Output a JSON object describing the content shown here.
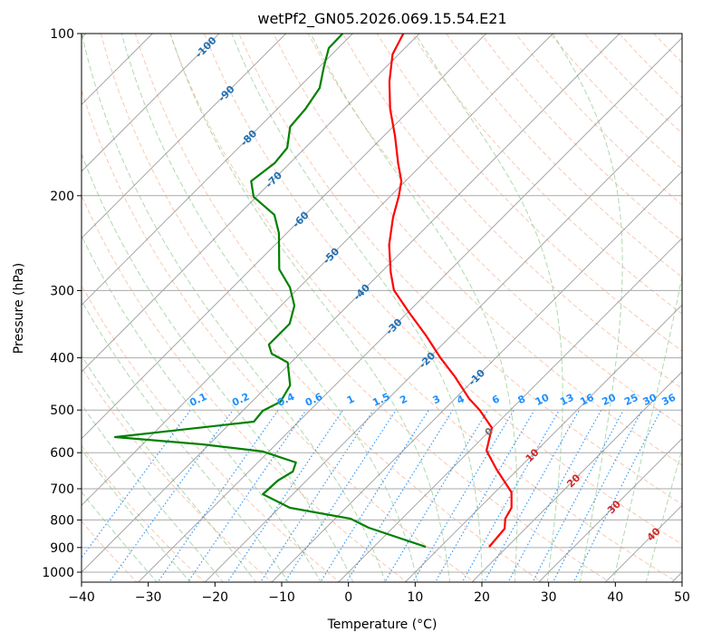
{
  "chart_data": {
    "type": "line",
    "title": "wetPf2_GN05.2026.069.15.54.E21",
    "xlabel": "Temperature (°C)",
    "ylabel": "Pressure (hPa)",
    "xlim": [
      -40,
      50
    ],
    "ylim": [
      1043,
      100
    ],
    "y_scale": "log",
    "grid": true,
    "x_ticks": [
      -40,
      -30,
      -20,
      -10,
      0,
      10,
      20,
      30,
      40,
      50
    ],
    "x_tick_labels": [
      "−40",
      "−30",
      "−20",
      "−10",
      "0",
      "10",
      "20",
      "30",
      "40",
      "50"
    ],
    "y_ticks": [
      100,
      200,
      300,
      400,
      500,
      600,
      700,
      800,
      900,
      1000
    ],
    "y_tick_labels": [
      "100",
      "200",
      "300",
      "400",
      "500",
      "600",
      "700",
      "800",
      "900",
      "1000"
    ],
    "isotherm_labels": [
      "-100",
      "-90",
      "-80",
      "-70",
      "-60",
      "-50",
      "-40",
      "-30",
      "-20",
      "-10",
      "0",
      "10",
      "20",
      "30",
      "40"
    ],
    "isotherm_values": [
      -100,
      -90,
      -80,
      -70,
      -60,
      -50,
      -40,
      -30,
      -20,
      -10,
      0,
      10,
      20,
      30,
      40
    ],
    "mixing_ratio_labels": [
      "0.1",
      "0.2",
      "0.4",
      "0.6",
      "1",
      "1.5",
      "2",
      "3",
      "4",
      "6",
      "8",
      "10",
      "13",
      "16",
      "20",
      "25",
      "30",
      "36"
    ],
    "mixing_ratio_values": [
      0.1,
      0.2,
      0.4,
      0.6,
      1,
      1.5,
      2,
      3,
      4,
      6,
      8,
      10,
      13,
      16,
      20,
      25,
      30,
      36
    ],
    "colors": {
      "temperature": "#ff0000",
      "dewpoint": "#008000",
      "isotherm": "#808080",
      "dry_adiabat": "#f4a582",
      "moist_adiabat": "#8fc98f",
      "mixing_ratio": "#1e90ff",
      "isotherm_label_cold": "#1f6fb4",
      "isotherm_label_zero": "#707070",
      "isotherm_label_warm": "#d62728"
    },
    "series": [
      {
        "name": "Temperature",
        "points_pressure_temp": [
          [
            100,
            -72.4
          ],
          [
            109.3,
            -70.9
          ],
          [
            122.8,
            -67.3
          ],
          [
            138,
            -63.1
          ],
          [
            155,
            -58.3
          ],
          [
            174,
            -53.8
          ],
          [
            188,
            -50.6
          ],
          [
            200,
            -48.8
          ],
          [
            219.6,
            -46.4
          ],
          [
            246.8,
            -42.9
          ],
          [
            277.2,
            -38.6
          ],
          [
            299.5,
            -35.4
          ],
          [
            330,
            -29.7
          ],
          [
            363.6,
            -23.8
          ],
          [
            400,
            -18.3
          ],
          [
            432.9,
            -13.4
          ],
          [
            476.9,
            -7.8
          ],
          [
            500,
            -4.6
          ],
          [
            539.8,
            -0.1
          ],
          [
            594.9,
            2.5
          ],
          [
            643,
            6.7
          ],
          [
            711,
            12.5
          ],
          [
            759.5,
            14.8
          ],
          [
            795.6,
            15.5
          ],
          [
            830.3,
            16.9
          ],
          [
            897.4,
            17.3
          ]
        ]
      },
      {
        "name": "Dewpoint",
        "points_pressure_temp": [
          [
            100,
            -81.5
          ],
          [
            106.4,
            -81.4
          ],
          [
            115,
            -79.4
          ],
          [
            126.2,
            -76.8
          ],
          [
            138,
            -75.8
          ],
          [
            149,
            -75.4
          ],
          [
            163,
            -72.7
          ],
          [
            174,
            -72.3
          ],
          [
            188,
            -73.1
          ],
          [
            201,
            -70.4
          ],
          [
            217,
            -64.6
          ],
          [
            234.6,
            -61.2
          ],
          [
            274,
            -55.7
          ],
          [
            296,
            -51.4
          ],
          [
            320,
            -48.0
          ],
          [
            345.7,
            -46.0
          ],
          [
            378,
            -46.0
          ],
          [
            393,
            -44.2
          ],
          [
            408,
            -40.5
          ],
          [
            450,
            -36.7
          ],
          [
            482.6,
            -35.7
          ],
          [
            501.5,
            -37.0
          ],
          [
            525.4,
            -36.7
          ],
          [
            561.3,
            -55.2
          ],
          [
            578.9,
            -41.1
          ],
          [
            597,
            -30.9
          ],
          [
            625.6,
            -24.3
          ],
          [
            650.3,
            -23.4
          ],
          [
            676,
            -24.3
          ],
          [
            716.5,
            -24.5
          ],
          [
            759.5,
            -18.4
          ],
          [
            795.6,
            -7.7
          ],
          [
            827,
            -3.6
          ],
          [
            897.4,
            7.8
          ]
        ]
      }
    ]
  }
}
